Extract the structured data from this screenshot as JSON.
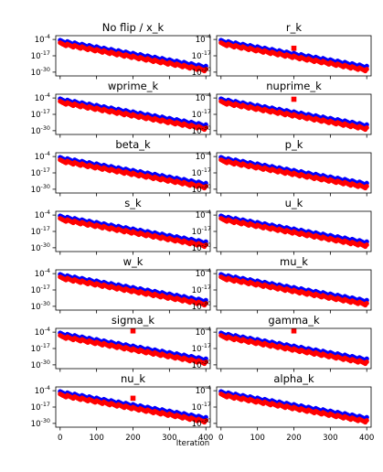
{
  "chart_data": {
    "type": "scatter",
    "grid_layout": "7 rows x 2 columns of subplots",
    "shared_x_axis": true,
    "xlabel": "Iteration",
    "xlim": [
      -12,
      412
    ],
    "x_ticks": [
      0,
      100,
      200,
      300,
      400
    ],
    "y_scale": "log",
    "ylim_exponent": [
      -33,
      -1
    ],
    "y_ticks": [
      {
        "base": "10",
        "exp": "-4"
      },
      {
        "base": "10",
        "exp": "-17"
      },
      {
        "base": "10",
        "exp": "-30"
      }
    ],
    "series_style": [
      {
        "color": "#0000ff",
        "marker": "circle"
      },
      {
        "color": "#ff0000",
        "marker": "circle"
      }
    ],
    "series_exponent_model": {
      "blue": {
        "exp_at_0": -5.6,
        "exp_at_400": -26.2,
        "zigzag_period": 20,
        "zigzag_amplitude": 1.0
      },
      "red": {
        "exp_at_0": -7.6,
        "exp_at_400": -28.6,
        "zigzag_period": 20,
        "zigzag_amplitude": 1.0
      }
    },
    "outlier_style": {
      "color": "#ff0000",
      "marker": "square"
    },
    "panels": [
      {
        "title": "No flip / x_k",
        "outlier": null
      },
      {
        "title": "r_k",
        "outlier": {
          "x": 200,
          "exp": -11
        }
      },
      {
        "title": "wprime_k",
        "outlier": null
      },
      {
        "title": "nuprime_k",
        "outlier": {
          "x": 200,
          "exp": -5
        }
      },
      {
        "title": "beta_k",
        "outlier": null
      },
      {
        "title": "p_k",
        "outlier": null
      },
      {
        "title": "s_k",
        "outlier": null
      },
      {
        "title": "u_k",
        "outlier": null
      },
      {
        "title": "w_k",
        "outlier": null
      },
      {
        "title": "mu_k",
        "outlier": null
      },
      {
        "title": "sigma_k",
        "outlier": {
          "x": 200,
          "exp": -3
        }
      },
      {
        "title": "gamma_k",
        "outlier": {
          "x": 200,
          "exp": -3
        }
      },
      {
        "title": "nu_k",
        "outlier": {
          "x": 200,
          "exp": -10
        }
      },
      {
        "title": "alpha_k",
        "outlier": null
      }
    ]
  }
}
